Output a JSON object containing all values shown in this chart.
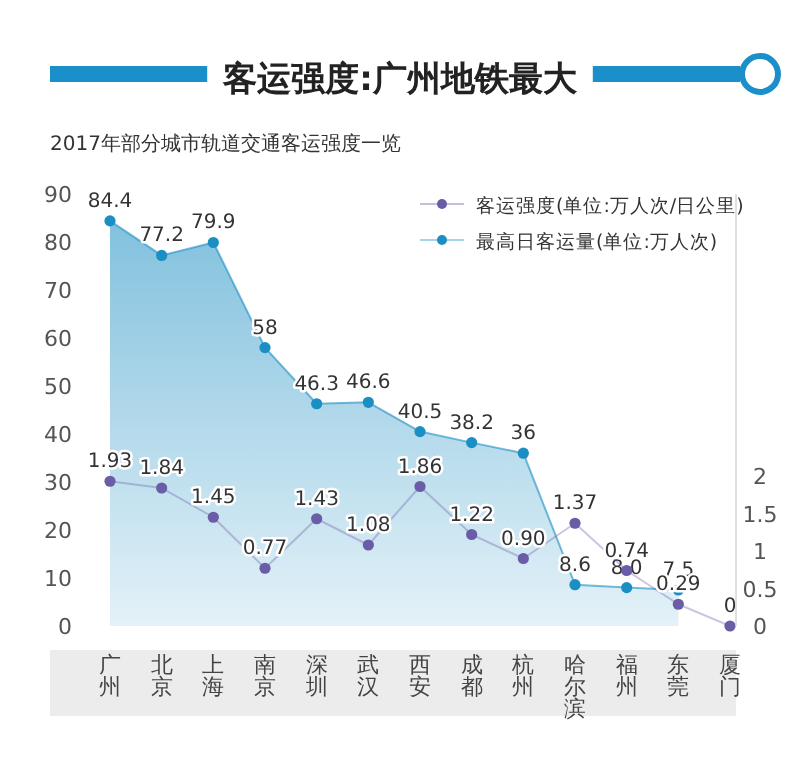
{
  "chart_data": {
    "type": "line",
    "title": "客运强度:广州地铁最大",
    "subtitle": "2017年部分城市轨道交通客运强度一览",
    "categories": [
      "广州",
      "北京",
      "上海",
      "南京",
      "深圳",
      "武汉",
      "西安",
      "成都",
      "杭州",
      "哈尔滨",
      "福州",
      "东莞",
      "厦门"
    ],
    "series": [
      {
        "name": "最高日客运量(单位:万人次)",
        "type": "area",
        "color": "#1b8ec3",
        "values": [
          84.4,
          77.2,
          79.9,
          58,
          46.3,
          46.6,
          40.5,
          38.2,
          36,
          8.6,
          8.0,
          7.5,
          null
        ],
        "value_labels": [
          "84.4",
          "77.2",
          "79.9",
          "58",
          "46.3",
          "46.6",
          "40.5",
          "38.2",
          "36",
          "8.6",
          "8.0",
          "7.5",
          null
        ]
      },
      {
        "name": "客运强度(单位:万人次/日公里)",
        "type": "line",
        "axis": "y2",
        "color": "#6a5ca6",
        "values": [
          1.93,
          1.84,
          1.45,
          0.77,
          1.43,
          1.08,
          1.86,
          1.22,
          0.9,
          1.37,
          0.74,
          0.29,
          0
        ],
        "value_labels": [
          "1.93",
          "1.84",
          "1.45",
          "0.77",
          "1.43",
          "1.08",
          "1.86",
          "1.22",
          "0.90",
          "1.37",
          "0.74",
          "0.29",
          "0"
        ]
      }
    ],
    "ylim": [
      0,
      90
    ],
    "yticks": [
      0,
      10,
      20,
      30,
      40,
      50,
      60,
      70,
      80,
      90
    ],
    "y2lim": [
      0,
      5.76
    ],
    "y2ticks": [
      0,
      0.5,
      1,
      1.5,
      2
    ],
    "grid": false,
    "legend": "top right",
    "marker": "circle"
  }
}
